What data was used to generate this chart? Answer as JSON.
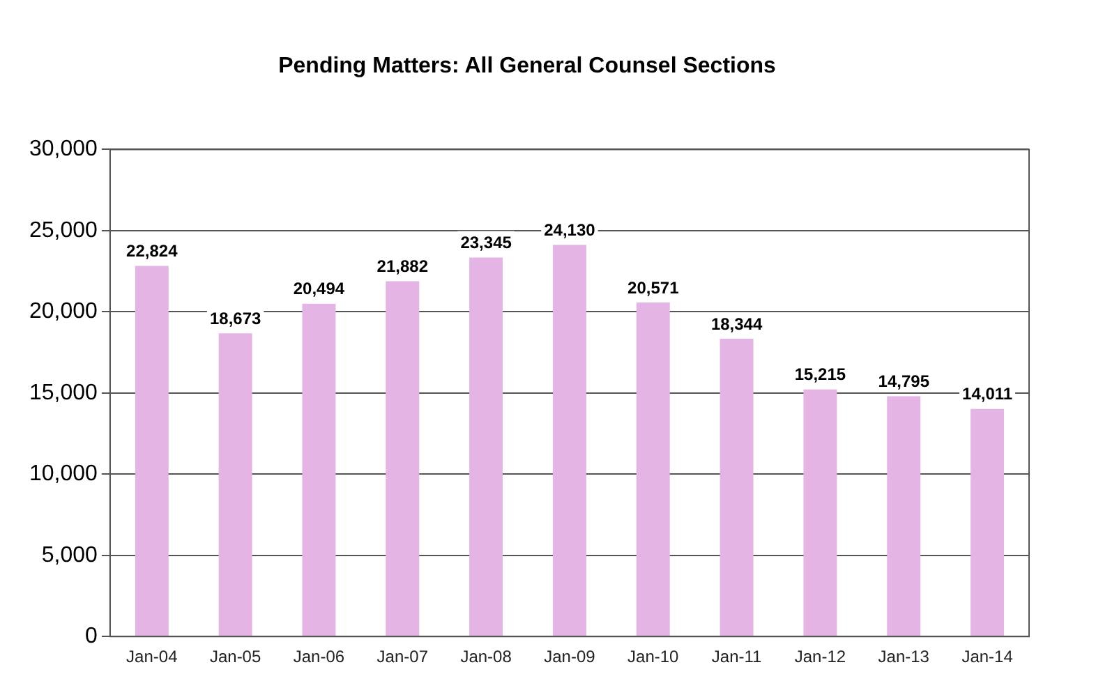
{
  "chart_data": {
    "type": "bar",
    "title": "Pending Matters: All General Counsel Sections",
    "categories": [
      "Jan-04",
      "Jan-05",
      "Jan-06",
      "Jan-07",
      "Jan-08",
      "Jan-09",
      "Jan-10",
      "Jan-11",
      "Jan-12",
      "Jan-13",
      "Jan-14"
    ],
    "values": [
      22824,
      18673,
      20494,
      21882,
      23345,
      24130,
      20571,
      18344,
      15215,
      14795,
      14011
    ],
    "value_labels": [
      "22,824",
      "18,673",
      "20,494",
      "21,882",
      "23,345",
      "24,130",
      "20,571",
      "18,344",
      "15,215",
      "14,795",
      "14,011"
    ],
    "color": "#e4b4e4",
    "ylim": [
      0,
      30000
    ],
    "yticks": [
      {
        "value": 0,
        "label": "0"
      },
      {
        "value": 5000,
        "label": "5,000"
      },
      {
        "value": 10000,
        "label": "10,000"
      },
      {
        "value": 15000,
        "label": "15,000"
      },
      {
        "value": 20000,
        "label": "20,000"
      },
      {
        "value": 25000,
        "label": "25,000"
      },
      {
        "value": 30000,
        "label": "30,000"
      }
    ],
    "grid": "y",
    "legend": false
  }
}
